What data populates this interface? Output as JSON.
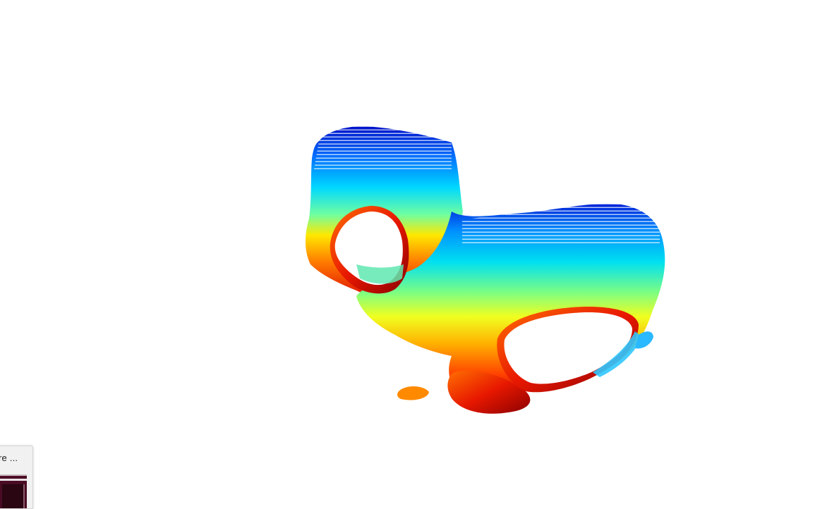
{
  "viewer": {
    "background": "#ffffff",
    "colormap": "jet",
    "colormap_stops": [
      "#00007f",
      "#0040ff",
      "#00c0ff",
      "#40ffbf",
      "#bfff40",
      "#ffd000",
      "#ff6000",
      "#d00000",
      "#7f0000"
    ],
    "object": "point-cloud-model"
  },
  "taskbar_thumbnail": {
    "label": "re ...",
    "icon": "window-preview-icon",
    "preview_color": "#4a0c24"
  }
}
